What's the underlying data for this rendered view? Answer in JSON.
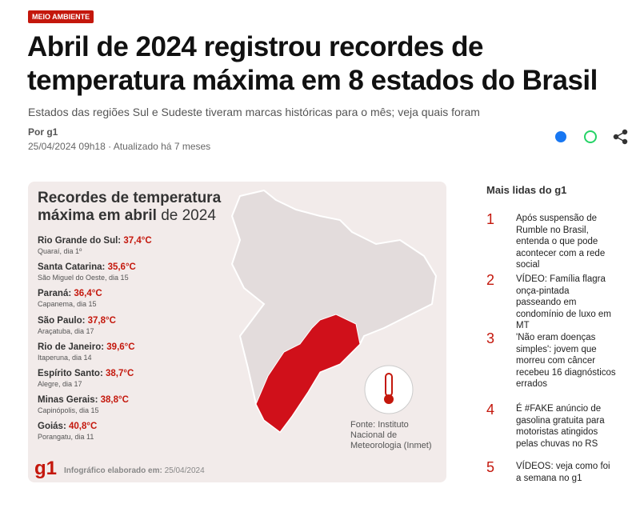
{
  "badge": "MEIO AMBIENTE",
  "headline": "Abril de 2024 registrou recordes de temperatura máxima em 8 estados do Brasil",
  "subtitle": "Estados das regiões Sul e Sudeste tiveram marcas históricas para o mês; veja quais foram",
  "byline": "Por g1",
  "date": "25/04/2024 09h18 · Atualizado há 7 meses",
  "infographic": {
    "title_bold": "Recordes de temperatura máxima em abril",
    "title_regular": "de 2024",
    "records": [
      {
        "state": "Rio Grande do Sul:",
        "temp": "37,4°C",
        "place": "Quaraí, dia 1º"
      },
      {
        "state": "Santa Catarina:",
        "temp": "35,6°C",
        "place": "São Miguel do Oeste, dia 15"
      },
      {
        "state": "Paraná:",
        "temp": "36,4°C",
        "place": "Capanema, dia 15"
      },
      {
        "state": "São Paulo:",
        "temp": "37,8°C",
        "place": "Araçatuba, dia 17"
      },
      {
        "state": "Rio de Janeiro:",
        "temp": "39,6°C",
        "place": "Itaperuna, dia 14"
      },
      {
        "state": "Espírito Santo:",
        "temp": "38,7°C",
        "place": "Alegre, dia 17"
      },
      {
        "state": "Minas Gerais:",
        "temp": "38,8°C",
        "place": "Capinópolis, dia 15"
      },
      {
        "state": "Goiás:",
        "temp": "40,8°C",
        "place": "Porangatu, dia 11"
      }
    ],
    "source": "Fonte: Instituto Nacional de Meteorologia (Inmet)",
    "logo": "g1",
    "footer_label": "Infográfico elaborado em:",
    "footer_date": "25/04/2024"
  },
  "sidebar": {
    "title": "Mais lidas do g1",
    "items": [
      {
        "rank": "1",
        "text": "Após suspensão de Rumble no Brasil, entenda o que pode acontecer com a rede social"
      },
      {
        "rank": "2",
        "text": "VÍDEO: Família flagra onça-pintada passeando em condomínio de luxo em MT"
      },
      {
        "rank": "3",
        "text": "'Não eram doenças simples': jovem que morreu com câncer recebeu 16 diagnósticos errados"
      },
      {
        "rank": "4",
        "text": "É #FAKE anúncio de gasolina gratuita para motoristas atingidos pelas chuvas no RS"
      },
      {
        "rank": "5",
        "text": "VÍDEOS: veja como foi a semana no g1"
      }
    ]
  }
}
